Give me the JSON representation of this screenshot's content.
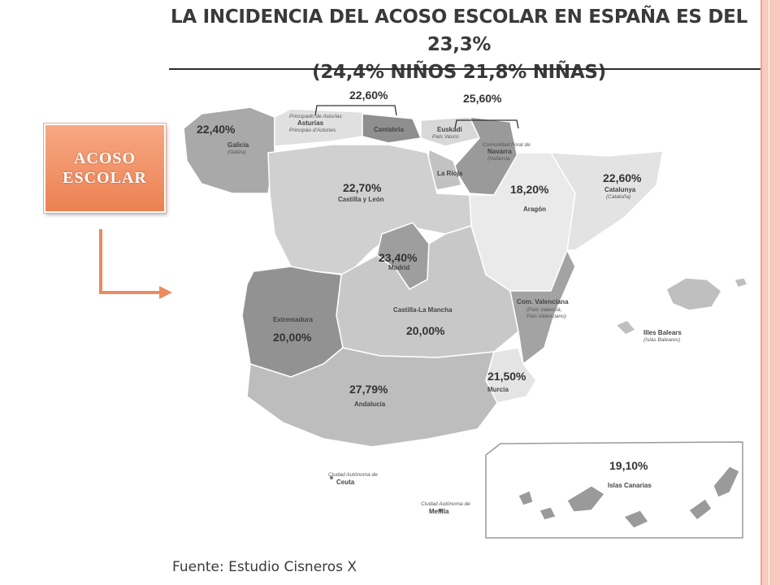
{
  "slide": {
    "title_line1": "LA INCIDENCIA DEL ACOSO ESCOLAR EN ESPAÑA ES DEL 23,3%",
    "title_line2": "(24,4% NIÑOS 21,8% NIÑAS)",
    "callout": "ACOSO ESCOLAR",
    "source": "Fuente: Estudio Cisneros X",
    "accent_color": "#ee8a5f",
    "band_color": "#f6cbbd"
  },
  "map": {
    "regions": [
      {
        "id": "galicia",
        "name": "Galicia",
        "sub": "(Galiza)",
        "value": "22,40%"
      },
      {
        "id": "asturias",
        "name": "Principado de Asturias",
        "sub": "Principáu d'Asturies"
      },
      {
        "id": "cantabria",
        "name": "Cantabria"
      },
      {
        "id": "cornisa",
        "value": "22,60%"
      },
      {
        "id": "norte",
        "value": "25,60%"
      },
      {
        "id": "euskadi",
        "name": "Euskadi",
        "sub": "País Vasco"
      },
      {
        "id": "navarra_pre",
        "name": "Comunidad Foral de"
      },
      {
        "id": "navarra",
        "name": "Navarra",
        "sub": "(Nafarroa"
      },
      {
        "id": "larioja",
        "name": "La Rioja"
      },
      {
        "id": "castillaleon",
        "name": "Castilla y León",
        "value": "22,70%"
      },
      {
        "id": "aragon",
        "name": "Aragón",
        "value": "18,20%"
      },
      {
        "id": "cataluna",
        "name": "Catalunya",
        "sub": "(Cataluña)",
        "value": "22,60%"
      },
      {
        "id": "madrid",
        "name": "Madrid",
        "value": "23,40%"
      },
      {
        "id": "extremadura",
        "name": "Extremadura",
        "value": "20,00%"
      },
      {
        "id": "castillalamancha",
        "name": "Castilla-La Mancha",
        "value": "20,00%"
      },
      {
        "id": "valencia",
        "name": "Com. Valenciana",
        "sub": "(País Valencià,",
        "sub2": "País Valenciano)"
      },
      {
        "id": "baleares",
        "name": "Illes Balears",
        "sub": "(Islas Baleares)"
      },
      {
        "id": "murcia",
        "name": "Murcia",
        "value": "21,50%"
      },
      {
        "id": "andalucia",
        "name": "Andalucía",
        "value": "27,79%"
      },
      {
        "id": "ceuta",
        "name": "Ceuta",
        "sub": "Ciudad Autónoma de"
      },
      {
        "id": "melilla",
        "name": "Melilla",
        "sub": "Ciudad Autónoma de"
      },
      {
        "id": "canarias",
        "name": "Islas Canarias",
        "value": "19,10%"
      }
    ]
  }
}
